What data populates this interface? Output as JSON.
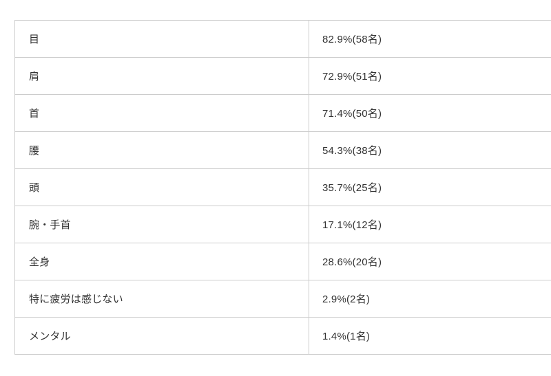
{
  "page": {
    "background_color": "#ffffff",
    "border_color": "#cccccc",
    "text_color": "#333333"
  },
  "chart_data": {
    "type": "table",
    "title": "",
    "rows": [
      {
        "label": "目",
        "value": "82.9%(58名)",
        "percent": 82.9,
        "count": 58
      },
      {
        "label": "肩",
        "value": "72.9%(51名)",
        "percent": 72.9,
        "count": 51
      },
      {
        "label": "首",
        "value": "71.4%(50名)",
        "percent": 71.4,
        "count": 50
      },
      {
        "label": "腰",
        "value": "54.3%(38名)",
        "percent": 54.3,
        "count": 38
      },
      {
        "label": "頭",
        "value": "35.7%(25名)",
        "percent": 35.7,
        "count": 25
      },
      {
        "label": "腕・手首",
        "value": "17.1%(12名)",
        "percent": 17.1,
        "count": 12
      },
      {
        "label": "全身",
        "value": "28.6%(20名)",
        "percent": 28.6,
        "count": 20
      },
      {
        "label": "特に疲労は感じない",
        "value": "2.9%(2名)",
        "percent": 2.9,
        "count": 2
      },
      {
        "label": "メンタル",
        "value": "1.4%(1名)",
        "percent": 1.4,
        "count": 1
      }
    ]
  }
}
